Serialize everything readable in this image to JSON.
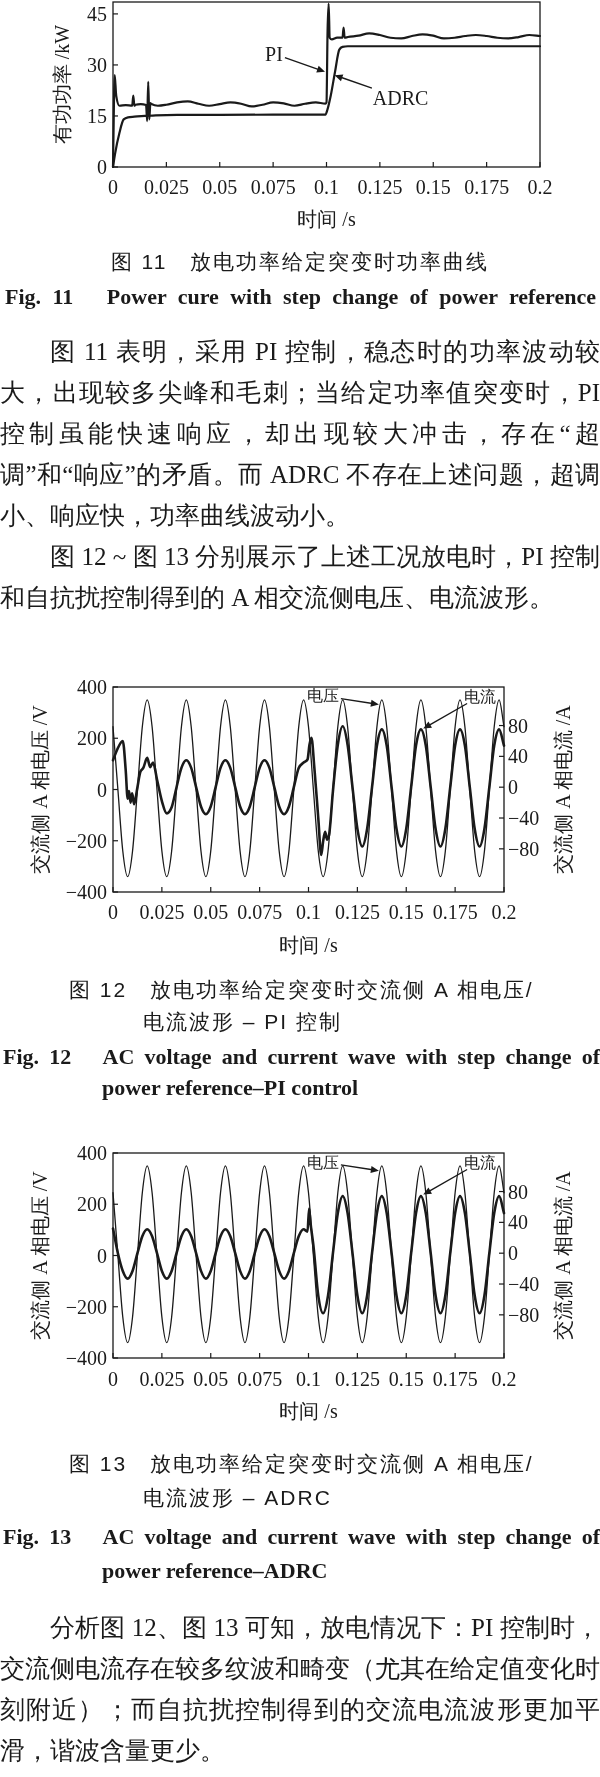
{
  "chart_data": [
    {
      "type": "line",
      "title": "图 11　放电功率给定突变时功率曲线",
      "subtitle": "Fig. 11　Power cure with step change of power reference",
      "xlabel": "时间 /s",
      "ylabel": "有功功率 /kW",
      "xlim": [
        0,
        0.2
      ],
      "xticks": [
        0,
        0.025,
        0.05,
        0.075,
        0.1,
        0.125,
        0.15,
        0.175,
        0.2
      ],
      "ylim": [
        0,
        48.5
      ],
      "yticks": [
        0,
        15,
        30,
        45
      ],
      "series": [
        {
          "color": "#1a1a1a",
          "x": [
            0,
            0.0008,
            0.0015,
            0.003,
            0.006,
            0.009,
            0.0095,
            0.01,
            0.0105,
            0.013,
            0.0155,
            0.016,
            0.0165,
            0.017,
            0.0175,
            0.018,
            0.021,
            0.025,
            0.03,
            0.035,
            0.04,
            0.045,
            0.05,
            0.055,
            0.06,
            0.065,
            0.07,
            0.075,
            0.08,
            0.085,
            0.09,
            0.095,
            0.0995,
            0.1,
            0.1005,
            0.101,
            0.1015,
            0.1025,
            0.105,
            0.1075,
            0.108,
            0.1085,
            0.11,
            0.115,
            0.12,
            0.125,
            0.13,
            0.135,
            0.14,
            0.145,
            0.15,
            0.155,
            0.16,
            0.165,
            0.17,
            0.175,
            0.18,
            0.185,
            0.19,
            0.195,
            0.2
          ],
          "values": [
            0,
            27,
            21,
            18,
            18.2,
            18,
            21,
            18,
            18.3,
            18.5,
            18.2,
            13.5,
            25,
            14,
            18.8,
            18.5,
            18,
            18.3,
            19,
            19.3,
            18.6,
            18,
            18.5,
            19,
            18.6,
            17.8,
            18.3,
            19,
            18.7,
            18,
            18.6,
            19,
            18.6,
            19,
            40,
            48,
            38,
            37.5,
            38,
            38,
            41,
            38,
            38.2,
            38.6,
            39.3,
            38.8,
            38,
            37.8,
            38.5,
            39,
            38.6,
            37.8,
            38,
            38.5,
            38.8,
            38.5,
            38,
            37.8,
            38.2,
            38.8,
            38.5
          ]
        },
        {
          "color": "#1a1a1a",
          "x": [
            0,
            0.001,
            0.003,
            0.005,
            0.007,
            0.01,
            0.015,
            0.02,
            0.03,
            0.05,
            0.075,
            0.0995,
            0.1005,
            0.102,
            0.104,
            0.106,
            0.1075,
            0.11,
            0.12,
            0.15,
            0.2
          ],
          "values": [
            0,
            4,
            10,
            14,
            14.6,
            14.8,
            15,
            15.2,
            15.3,
            15.3,
            15.4,
            15.4,
            17,
            21,
            28,
            34.5,
            35.3,
            35.5,
            35.5,
            35.5,
            35.5
          ]
        }
      ],
      "annotations": [
        {
          "text": "PI",
          "x": 0.0993,
          "y": 28
        },
        {
          "text": "ADRC",
          "x": 0.1038,
          "y": 27
        },
        "图 11 表明，采用 PI 控制，稳态时的功率波动较大，出现较多尖峰和毛刺；当给定功率值突变时，PI 控制虽能快速响应，却出现较大冲击，存在“超调”和“响应”的矛盾。而 ADRC 不存在上述问题，超调小、响应快，功率曲线波动小。",
        "图 12 ~ 图 13 分别展示了上述工况放电时，PI 控制和自抗扰控制得到的 A 相交流侧电压、电流波形。"
      ]
    },
    {
      "type": "line",
      "title": "图 12　放电功率给定突变时交流侧 A 相电压/电流波形 – PI 控制",
      "subtitle": "Fig. 12　AC voltage and current wave with step change of power reference–PI control",
      "xlabel": "时间 /s",
      "ylabel": "交流侧 A 相电压 /V",
      "y2label": "交流侧 A 相电流 /A",
      "xlim": [
        0,
        0.2
      ],
      "xticks": [
        0,
        0.025,
        0.05,
        0.075,
        0.1,
        0.125,
        0.15,
        0.175,
        0.2
      ],
      "ylim": [
        -400,
        400
      ],
      "yticks": [
        -400,
        -200,
        0,
        200,
        400
      ],
      "y2lim": [
        -136,
        130
      ],
      "y2ticks": [
        -80,
        -40,
        0,
        40,
        80
      ],
      "x": [
        0,
        0.0025,
        0.005,
        0.0075,
        0.01,
        0.0125,
        0.015,
        0.0175,
        0.02,
        0.0225,
        0.025,
        0.0275,
        0.03,
        0.0325,
        0.035,
        0.0375,
        0.04,
        0.0425,
        0.045,
        0.0475,
        0.05,
        0.0525,
        0.055,
        0.0575,
        0.06,
        0.0625,
        0.065,
        0.0675,
        0.07,
        0.0725,
        0.075,
        0.0775,
        0.08,
        0.0825,
        0.085,
        0.0875,
        0.09,
        0.0925,
        0.095,
        0.0975,
        0.1,
        0.1025,
        0.105,
        0.1075,
        0.11,
        0.1125,
        0.115,
        0.1175,
        0.12,
        0.1225,
        0.125,
        0.1275,
        0.13,
        0.1325,
        0.135,
        0.1375,
        0.14,
        0.1425,
        0.145,
        0.1475,
        0.15,
        0.1525,
        0.155,
        0.1575,
        0.16,
        0.1625,
        0.165,
        0.1675,
        0.17,
        0.1725,
        0.175,
        0.1775,
        0.18,
        0.1825,
        0.185,
        0.1875,
        0.19,
        0.1925,
        0.195,
        0.1975,
        0.2
      ],
      "series": [
        {
          "color": "#1a1a1a",
          "values": [
            245,
            0,
            -240,
            -340,
            -240,
            0,
            245,
            350,
            245,
            0,
            -240,
            -340,
            -240,
            0,
            245,
            350,
            245,
            0,
            -240,
            -340,
            -240,
            0,
            245,
            350,
            245,
            0,
            -240,
            -340,
            -240,
            0,
            245,
            350,
            245,
            0,
            -240,
            -340,
            -240,
            0,
            245,
            350,
            245,
            0,
            -240,
            -340,
            -240,
            0,
            245,
            350,
            245,
            0,
            -240,
            -340,
            -240,
            0,
            245,
            350,
            245,
            0,
            -240,
            -340,
            -240,
            0,
            245,
            350,
            245,
            0,
            -240,
            -340,
            -240,
            0,
            245,
            350,
            245,
            0,
            -240,
            -340,
            -240,
            0,
            245,
            350,
            245
          ]
        },
        {
          "color": "#1a1a1a",
          "axis": "y2",
          "x": [
            0,
            0.002,
            0.005,
            0.0065,
            0.0075,
            0.0082,
            0.009,
            0.0098,
            0.0108,
            0.0125,
            0.014,
            0.0155,
            0.0175,
            0.019,
            0.0205,
            0.0225,
            0.025,
            0.0275,
            0.03,
            0.0325,
            0.035,
            0.0375,
            0.04,
            0.0425,
            0.045,
            0.0475,
            0.05,
            0.0525,
            0.055,
            0.0575,
            0.06,
            0.0625,
            0.065,
            0.0675,
            0.07,
            0.0725,
            0.075,
            0.0775,
            0.08,
            0.0825,
            0.085,
            0.0875,
            0.09,
            0.0925,
            0.095,
            0.0975,
            0.0995,
            0.1005,
            0.1015,
            0.103,
            0.105,
            0.1065,
            0.1075,
            0.1085,
            0.1095,
            0.1105,
            0.1125,
            0.115,
            0.1175,
            0.12,
            0.1225,
            0.125,
            0.1275,
            0.13,
            0.1325,
            0.135,
            0.1375,
            0.14,
            0.1425,
            0.145,
            0.1475,
            0.15,
            0.1525,
            0.155,
            0.1575,
            0.16,
            0.1625,
            0.165,
            0.1675,
            0.17,
            0.1725,
            0.175,
            0.1775,
            0.18,
            0.1825,
            0.185,
            0.1875,
            0.19,
            0.1925,
            0.195,
            0.1975,
            0.2
          ],
          "values": [
            35,
            48,
            60,
            22,
            -15,
            -5,
            -20,
            -8,
            -22,
            0,
            20,
            25,
            38,
            26,
            32,
            10,
            -18,
            -34,
            -26,
            0,
            25,
            35,
            25,
            0,
            -25,
            -35,
            -25,
            0,
            25,
            35,
            25,
            0,
            -25,
            -35,
            -25,
            0,
            25,
            35,
            25,
            0,
            -25,
            -35,
            -25,
            0,
            25,
            32,
            36,
            55,
            64,
            25,
            -40,
            -88,
            -70,
            -58,
            -68,
            -62,
            -5,
            55,
            79,
            55,
            0,
            -54,
            -77,
            -54,
            0,
            54,
            75,
            54,
            0,
            -54,
            -77,
            -54,
            0,
            54,
            75,
            54,
            0,
            -54,
            -77,
            -54,
            0,
            54,
            75,
            54,
            0,
            -54,
            -77,
            -54,
            0,
            54,
            75,
            54
          ]
        }
      ],
      "annotations": [
        {
          "text": "电压",
          "x": 0.136,
          "y": 332
        },
        {
          "text": "电流",
          "x": 0.1587,
          "y": 238
        }
      ]
    },
    {
      "type": "line",
      "title": "图 13　放电功率给定突变时交流侧 A 相电压/电流波形 – ADRC",
      "subtitle": "Fig. 13　AC voltage and current wave with step change of power reference–ADRC",
      "xlabel": "时间 /s",
      "ylabel": "交流侧 A 相电压 /V",
      "y2label": "交流侧 A 相电流 /A",
      "xlim": [
        0,
        0.2
      ],
      "xticks": [
        0,
        0.025,
        0.05,
        0.075,
        0.1,
        0.125,
        0.15,
        0.175,
        0.2
      ],
      "ylim": [
        -400,
        400
      ],
      "yticks": [
        -400,
        -200,
        0,
        200,
        400
      ],
      "y2lim": [
        -136,
        130
      ],
      "y2ticks": [
        -80,
        -40,
        0,
        40,
        80
      ],
      "x": [
        0,
        0.0025,
        0.005,
        0.0075,
        0.01,
        0.0125,
        0.015,
        0.0175,
        0.02,
        0.0225,
        0.025,
        0.0275,
        0.03,
        0.0325,
        0.035,
        0.0375,
        0.04,
        0.0425,
        0.045,
        0.0475,
        0.05,
        0.0525,
        0.055,
        0.0575,
        0.06,
        0.0625,
        0.065,
        0.0675,
        0.07,
        0.0725,
        0.075,
        0.0775,
        0.08,
        0.0825,
        0.085,
        0.0875,
        0.09,
        0.0925,
        0.095,
        0.0975,
        0.1,
        0.1025,
        0.105,
        0.1075,
        0.11,
        0.1125,
        0.115,
        0.1175,
        0.12,
        0.1225,
        0.125,
        0.1275,
        0.13,
        0.1325,
        0.135,
        0.1375,
        0.14,
        0.1425,
        0.145,
        0.1475,
        0.15,
        0.1525,
        0.155,
        0.1575,
        0.16,
        0.1625,
        0.165,
        0.1675,
        0.17,
        0.1725,
        0.175,
        0.1775,
        0.18,
        0.1825,
        0.185,
        0.1875,
        0.19,
        0.1925,
        0.195,
        0.1975,
        0.2
      ],
      "series": [
        {
          "color": "#1a1a1a",
          "values": [
            245,
            0,
            -240,
            -340,
            -240,
            0,
            245,
            350,
            245,
            0,
            -240,
            -340,
            -240,
            0,
            245,
            350,
            245,
            0,
            -240,
            -340,
            -240,
            0,
            245,
            350,
            245,
            0,
            -240,
            -340,
            -240,
            0,
            245,
            350,
            245,
            0,
            -240,
            -340,
            -240,
            0,
            245,
            350,
            245,
            0,
            -240,
            -340,
            -240,
            0,
            245,
            350,
            245,
            0,
            -240,
            -340,
            -240,
            0,
            245,
            350,
            245,
            0,
            -240,
            -340,
            -240,
            0,
            245,
            350,
            245,
            0,
            -240,
            -340,
            -240,
            0,
            245,
            350,
            245,
            0,
            -240,
            -340,
            -240,
            0,
            245,
            350,
            245
          ]
        },
        {
          "color": "#1a1a1a",
          "axis": "y2",
          "x": [
            0,
            0.0025,
            0.005,
            0.0075,
            0.01,
            0.0125,
            0.015,
            0.0175,
            0.02,
            0.0225,
            0.025,
            0.0275,
            0.03,
            0.0325,
            0.035,
            0.0375,
            0.04,
            0.0425,
            0.045,
            0.0475,
            0.05,
            0.0525,
            0.055,
            0.0575,
            0.06,
            0.0625,
            0.065,
            0.0675,
            0.07,
            0.0725,
            0.075,
            0.0775,
            0.08,
            0.0825,
            0.085,
            0.0875,
            0.09,
            0.0925,
            0.095,
            0.0975,
            0.0995,
            0.1003,
            0.101,
            0.1025,
            0.105,
            0.1075,
            0.11,
            0.1125,
            0.115,
            0.1175,
            0.12,
            0.1225,
            0.125,
            0.1275,
            0.13,
            0.1325,
            0.135,
            0.1375,
            0.14,
            0.1425,
            0.145,
            0.1475,
            0.15,
            0.1525,
            0.155,
            0.1575,
            0.16,
            0.1625,
            0.165,
            0.1675,
            0.17,
            0.1725,
            0.175,
            0.1775,
            0.18,
            0.1825,
            0.185,
            0.1875,
            0.19,
            0.1925,
            0.195,
            0.1975,
            0.2
          ],
          "values": [
            32,
            0,
            -23,
            -33,
            -23,
            0,
            22,
            31,
            22,
            0,
            -23,
            -33,
            -23,
            0,
            22,
            31,
            22,
            0,
            -23,
            -33,
            -23,
            0,
            22,
            31,
            22,
            0,
            -23,
            -33,
            -23,
            0,
            22,
            31,
            22,
            0,
            -23,
            -33,
            -23,
            0,
            22,
            31,
            28,
            58,
            40,
            10,
            -55,
            -78,
            -55,
            0,
            52,
            74,
            52,
            0,
            -55,
            -78,
            -55,
            0,
            52,
            74,
            52,
            0,
            -55,
            -78,
            -55,
            0,
            52,
            74,
            52,
            0,
            -55,
            -78,
            -55,
            0,
            52,
            74,
            52,
            0,
            -55,
            -78,
            -55,
            0,
            52,
            74,
            52
          ]
        }
      ],
      "annotations": [
        {
          "text": "电压",
          "x": 0.136,
          "y": 331
        },
        {
          "text": "电流",
          "x": 0.1587,
          "y": 238
        },
        "分析图 12、图 13 可知，放电情况下：PI 控制时，交流侧电流存在较多纹波和畸变（尤其在给定值变化时刻附近）；而自抗扰控制得到的交流电流波形更加平滑，谐波含量更少。"
      ]
    }
  ]
}
